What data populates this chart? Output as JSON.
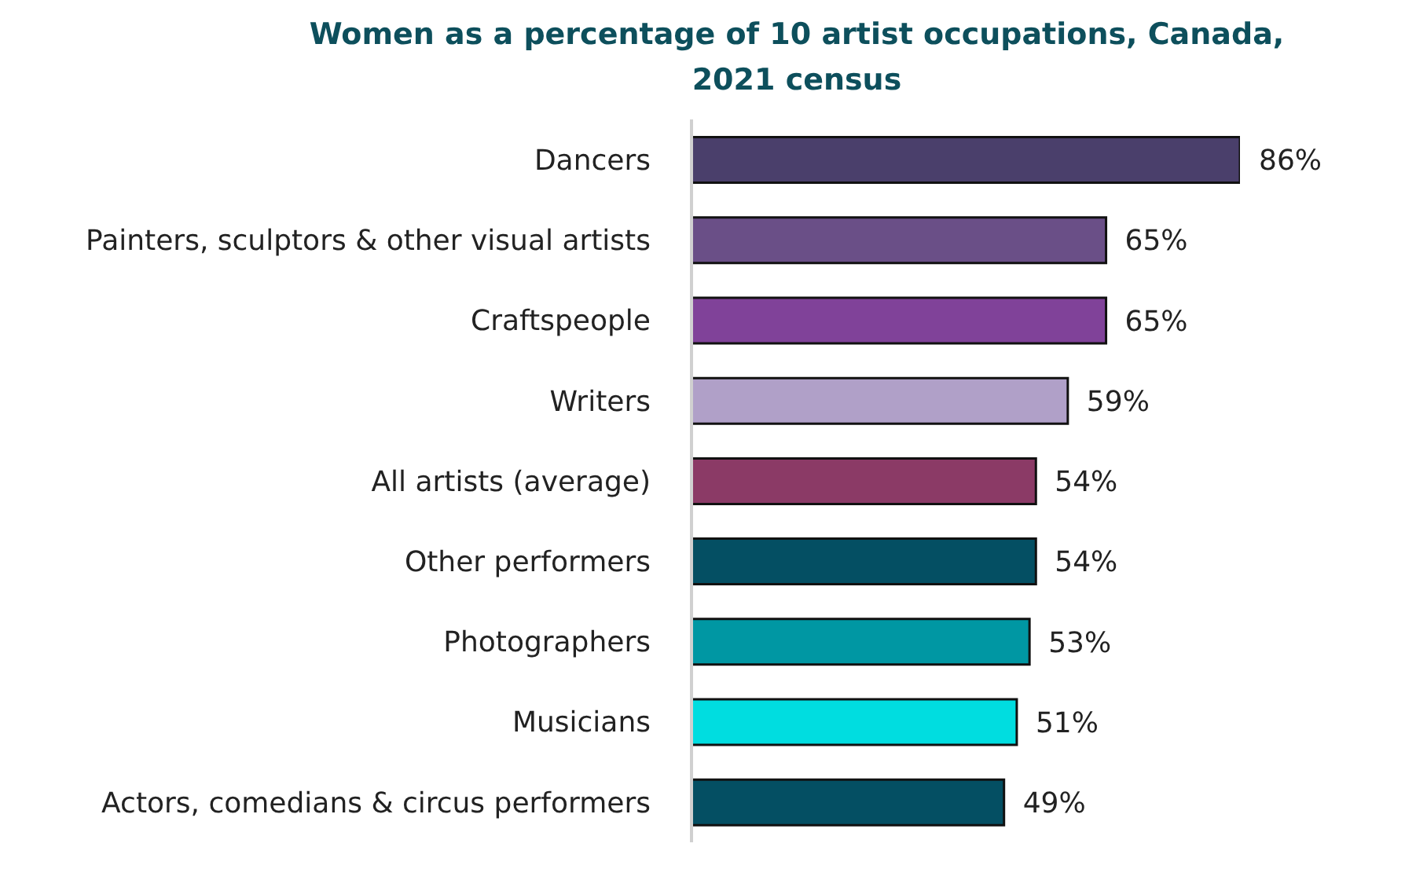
{
  "chart_data": {
    "type": "bar",
    "orientation": "horizontal",
    "title": "Women as a percentage of 10 artist occupations, Canada, 2021 census",
    "categories": [
      "Dancers",
      "Painters, sculptors & other visual artists",
      "Craftspeople",
      "Writers",
      "All artists (average)",
      "Other performers",
      "Photographers",
      "Musicians",
      "Actors, comedians & circus performers"
    ],
    "values": [
      86,
      65,
      65,
      59,
      54,
      54,
      53,
      51,
      49
    ],
    "colors": [
      "#4a3f6b",
      "#6a4f87",
      "#804299",
      "#b0a0c8",
      "#8b3a66",
      "#044f63",
      "#0097a3",
      "#00dde0",
      "#044f63"
    ],
    "value_labels": [
      "86%",
      "65%",
      "65%",
      "59%",
      "54%",
      "54%",
      "53%",
      "51%",
      "49%"
    ],
    "tick_labels": "y",
    "grid": false,
    "legend": false
  }
}
